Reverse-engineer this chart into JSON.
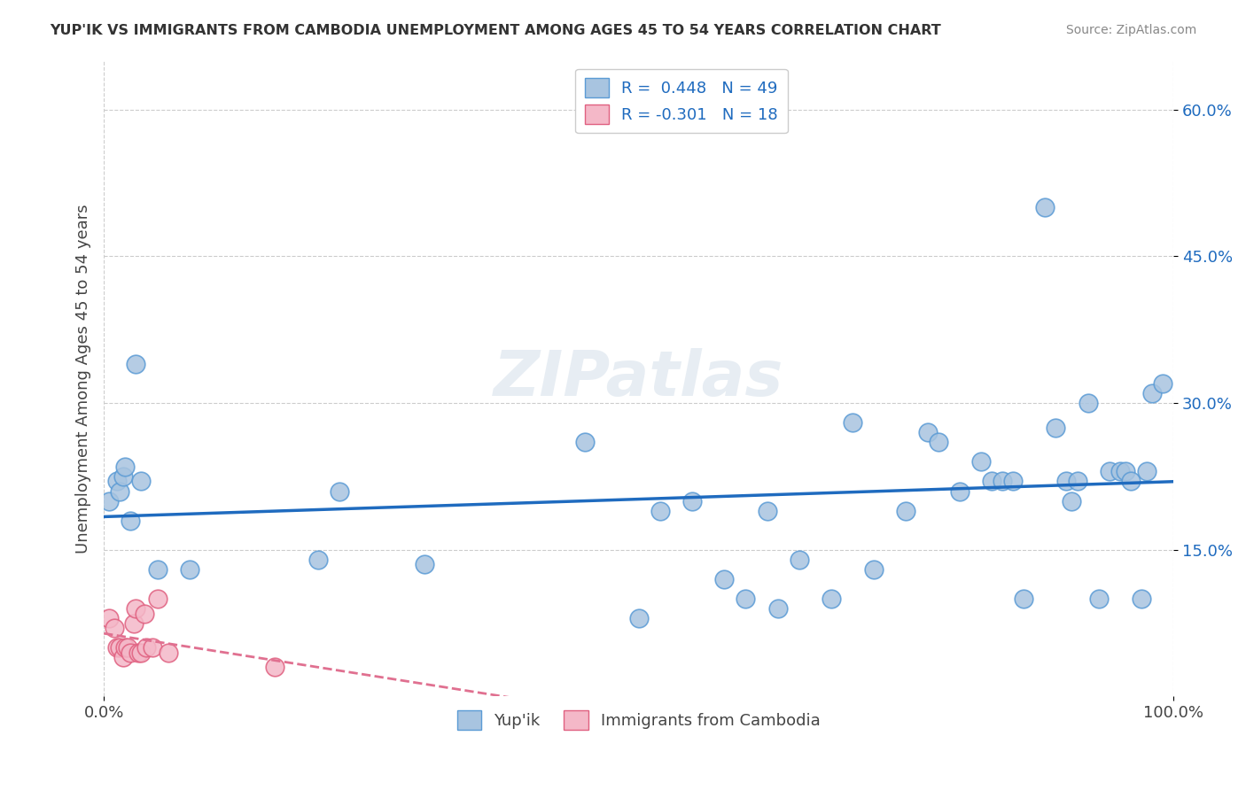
{
  "title": "YUP'IK VS IMMIGRANTS FROM CAMBODIA UNEMPLOYMENT AMONG AGES 45 TO 54 YEARS CORRELATION CHART",
  "source": "Source: ZipAtlas.com",
  "xlabel_ticks": [
    "0.0%",
    "100.0%"
  ],
  "ylabel_ticks": [
    "15.0%",
    "30.0%",
    "45.0%",
    "60.0%"
  ],
  "ylabel_label": "Unemployment Among Ages 45 to 54 years",
  "legend_label_1": "Yup'ik",
  "legend_label_2": "Immigrants from Cambodia",
  "R1": "0.448",
  "N1": "49",
  "R2": "-0.301",
  "N2": "18",
  "watermark": "ZIPatlas",
  "color_blue": "#a8c4e0",
  "color_blue_dark": "#5b9bd5",
  "color_pink": "#f4b8c8",
  "color_pink_dark": "#e06080",
  "color_line_blue": "#1f6bbf",
  "color_line_pink": "#e07090",
  "yupik_x": [
    0.5,
    1.2,
    1.5,
    1.8,
    2.0,
    2.5,
    3.0,
    3.5,
    5.0,
    8.0,
    20.0,
    22.0,
    30.0,
    45.0,
    50.0,
    52.0,
    55.0,
    58.0,
    60.0,
    62.0,
    63.0,
    65.0,
    68.0,
    70.0,
    72.0,
    75.0,
    77.0,
    78.0,
    80.0,
    82.0,
    83.0,
    84.0,
    85.0,
    86.0,
    88.0,
    89.0,
    90.0,
    90.5,
    91.0,
    92.0,
    93.0,
    94.0,
    95.0,
    95.5,
    96.0,
    97.0,
    97.5,
    98.0,
    99.0
  ],
  "yupik_y": [
    20.0,
    22.0,
    21.0,
    22.5,
    23.5,
    18.0,
    34.0,
    22.0,
    13.0,
    13.0,
    14.0,
    21.0,
    13.5,
    26.0,
    8.0,
    19.0,
    20.0,
    12.0,
    10.0,
    19.0,
    9.0,
    14.0,
    10.0,
    28.0,
    13.0,
    19.0,
    27.0,
    26.0,
    21.0,
    24.0,
    22.0,
    22.0,
    22.0,
    10.0,
    50.0,
    27.5,
    22.0,
    20.0,
    22.0,
    30.0,
    10.0,
    23.0,
    23.0,
    23.0,
    22.0,
    10.0,
    23.0,
    31.0,
    32.0
  ],
  "cambodia_x": [
    0.5,
    1.0,
    1.2,
    1.5,
    1.8,
    2.0,
    2.2,
    2.5,
    2.8,
    3.0,
    3.2,
    3.5,
    3.8,
    4.0,
    4.5,
    5.0,
    6.0,
    16.0
  ],
  "cambodia_y": [
    8.0,
    7.0,
    5.0,
    5.0,
    4.0,
    5.0,
    5.0,
    4.5,
    7.5,
    9.0,
    4.5,
    4.5,
    8.5,
    5.0,
    5.0,
    10.0,
    4.5,
    3.0
  ],
  "xlim": [
    0.0,
    100.0
  ],
  "ylim": [
    0.0,
    65.0
  ],
  "figsize": [
    14.06,
    8.92
  ],
  "dpi": 100
}
